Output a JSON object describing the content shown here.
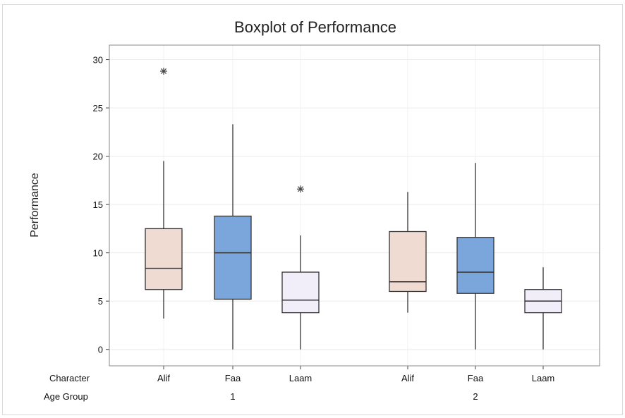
{
  "chart_data": {
    "type": "boxplot",
    "title": "Boxplot of Performance",
    "ylabel": "Performance",
    "ylim": [
      -1.7,
      31.5
    ],
    "yticks": [
      0,
      5,
      10,
      15,
      20,
      25,
      30
    ],
    "grid": true,
    "row_labels": {
      "character": "Character",
      "age_group": "Age Group"
    },
    "groups": [
      {
        "label": "1",
        "boxes": [
          {
            "category": "Alif",
            "color": "#f0dbd3",
            "q1": 6.2,
            "median": 8.4,
            "q3": 12.5,
            "whisker_low": 3.2,
            "whisker_high": 19.5,
            "outliers": [
              28.8
            ]
          },
          {
            "category": "Faa",
            "color": "#7aa6dc",
            "q1": 5.2,
            "median": 10.0,
            "q3": 13.8,
            "whisker_low": 0.0,
            "whisker_high": 23.3,
            "outliers": []
          },
          {
            "category": "Laam",
            "color": "#f1eefa",
            "q1": 3.8,
            "median": 5.1,
            "q3": 8.0,
            "whisker_low": 0.0,
            "whisker_high": 11.8,
            "outliers": [
              16.6
            ]
          }
        ]
      },
      {
        "label": "2",
        "boxes": [
          {
            "category": "Alif",
            "color": "#f0dbd3",
            "q1": 6.0,
            "median": 7.0,
            "q3": 12.2,
            "whisker_low": 3.8,
            "whisker_high": 16.3,
            "outliers": []
          },
          {
            "category": "Faa",
            "color": "#7aa6dc",
            "q1": 5.8,
            "median": 8.0,
            "q3": 11.6,
            "whisker_low": 0.0,
            "whisker_high": 19.3,
            "outliers": []
          },
          {
            "category": "Laam",
            "color": "#f1eefa",
            "q1": 3.8,
            "median": 5.0,
            "q3": 6.2,
            "whisker_low": 0.0,
            "whisker_high": 8.5,
            "outliers": []
          }
        ]
      }
    ]
  }
}
